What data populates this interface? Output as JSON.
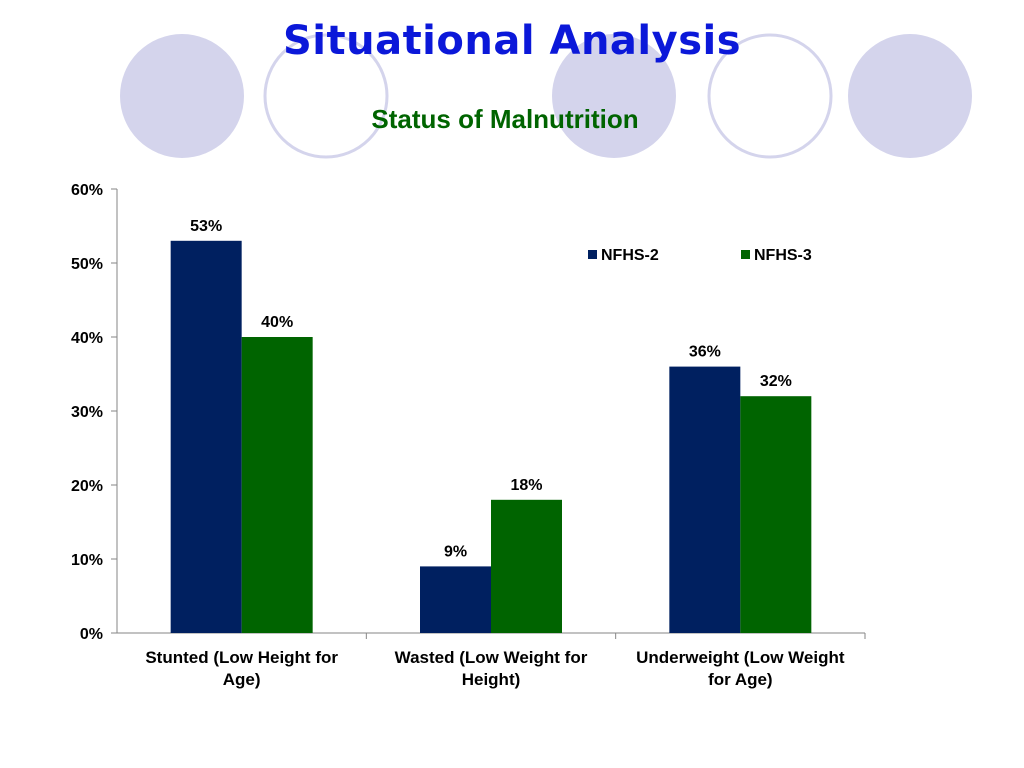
{
  "slide": {
    "title": "Situational Analysis",
    "subtitle": "Status of Malnutrition"
  },
  "colors": {
    "title": "#0b18d9",
    "subtitle": "#006400",
    "decor_fill": "#d4d4ec",
    "decor_stroke": "#d4d4ec",
    "series_1": "#002060",
    "series_2": "#006400"
  },
  "chart_data": {
    "type": "bar",
    "categories": [
      [
        "Stunted (Low Height for",
        "Age)"
      ],
      [
        "Wasted (Low Weight for",
        "Height)"
      ],
      [
        "Underweight (Low Weight",
        "for Age)"
      ]
    ],
    "series": [
      {
        "name": "NFHS-2",
        "values": [
          53,
          9,
          36
        ],
        "labels": [
          "53%",
          "9%",
          "36%"
        ],
        "color": "#002060"
      },
      {
        "name": "NFHS-3",
        "values": [
          40,
          18,
          32
        ],
        "labels": [
          "40%",
          "18%",
          "32%"
        ],
        "color": "#006400"
      }
    ],
    "yticks": [
      "0%",
      "10%",
      "20%",
      "30%",
      "40%",
      "50%",
      "60%"
    ],
    "ylim": [
      0,
      60
    ],
    "xlabel": "",
    "ylabel": "",
    "grid": false,
    "legend_position": "top-right"
  }
}
